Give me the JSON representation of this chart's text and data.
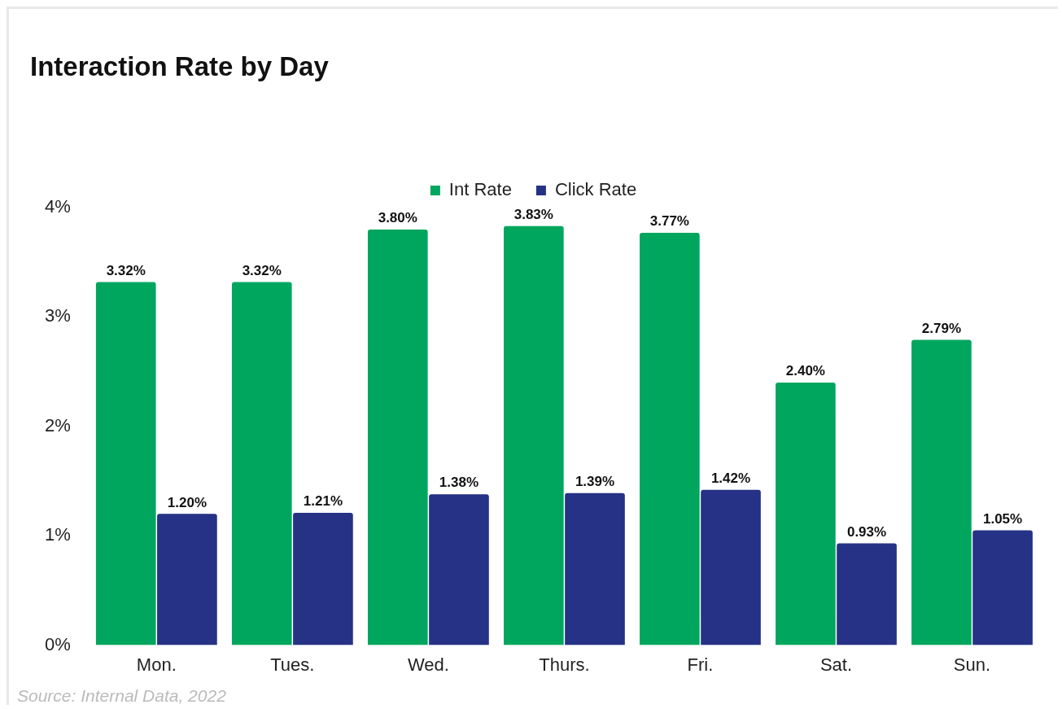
{
  "chart_data": {
    "type": "bar",
    "title": "Interaction Rate by Day",
    "categories": [
      "Mon.",
      "Tues.",
      "Wed.",
      "Thurs.",
      "Fri.",
      "Sat.",
      "Sun."
    ],
    "series": [
      {
        "name": "Int Rate",
        "color": "#00a65e",
        "values": [
          3.32,
          3.32,
          3.8,
          3.83,
          3.77,
          2.4,
          2.79
        ],
        "value_labels": [
          "3.32%",
          "3.32%",
          "3.80%",
          "3.83%",
          "3.77%",
          "2.40%",
          "2.79%"
        ]
      },
      {
        "name": "Click Rate",
        "color": "#253285",
        "values": [
          1.2,
          1.21,
          1.38,
          1.39,
          1.42,
          0.93,
          1.05
        ],
        "value_labels": [
          "1.20%",
          "1.21%",
          "1.38%",
          "1.39%",
          "1.42%",
          "0.93%",
          "1.05%"
        ]
      }
    ],
    "ylim": [
      0,
      4
    ],
    "yticks": [
      {
        "value": 0,
        "label": "0%"
      },
      {
        "value": 1,
        "label": "1%"
      },
      {
        "value": 2,
        "label": "2%"
      },
      {
        "value": 3,
        "label": "3%"
      },
      {
        "value": 4,
        "label": "4%"
      }
    ],
    "grid": false,
    "legend": "top",
    "annotations": [
      "Source: Internal Data, 2022"
    ]
  }
}
